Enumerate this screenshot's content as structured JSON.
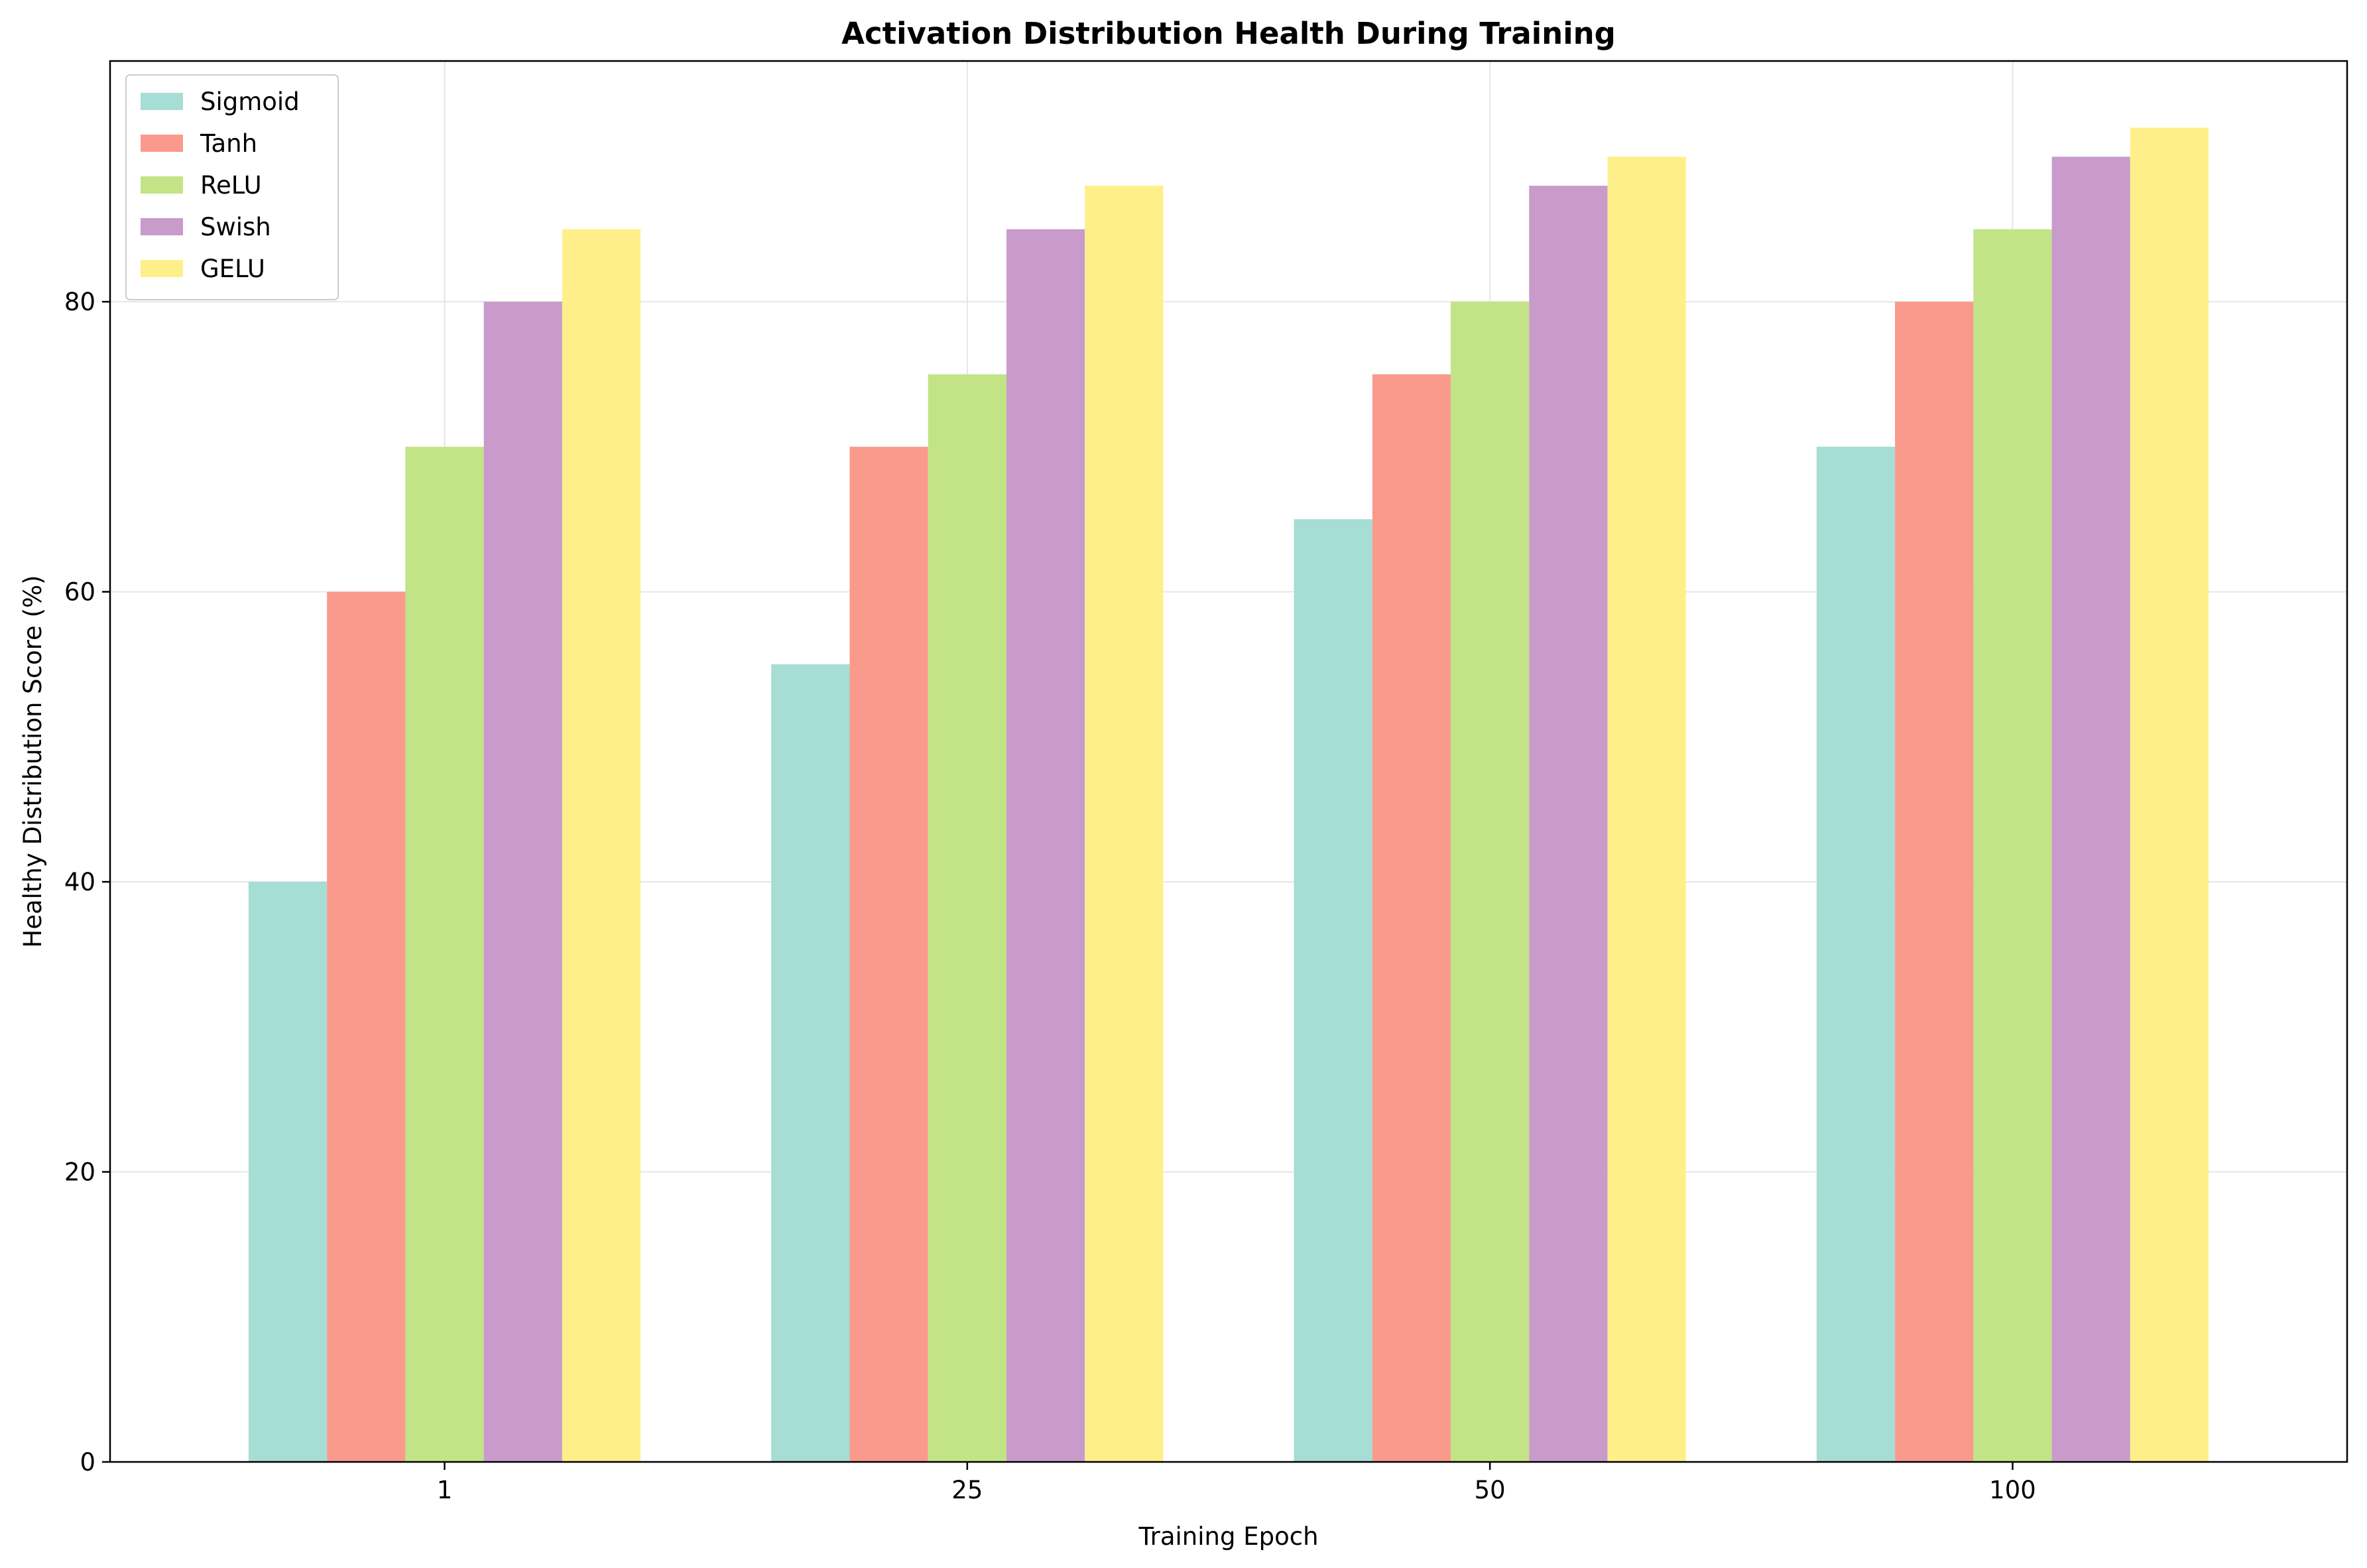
{
  "chart_data": {
    "type": "bar",
    "title": "Activation Distribution Health During Training",
    "xlabel": "Training Epoch",
    "ylabel": "Healthy Distribution Score (%)",
    "categories": [
      "1",
      "25",
      "50",
      "100"
    ],
    "ylim": [
      0,
      96.6
    ],
    "yticks": [
      0,
      20,
      40,
      60,
      80
    ],
    "grid": true,
    "legend_position": "top-left",
    "series": [
      {
        "name": "Sigmoid",
        "color": "#a6ddd5",
        "values": [
          40,
          55,
          65,
          70
        ]
      },
      {
        "name": "Tanh",
        "color": "#fa9a8d",
        "values": [
          60,
          70,
          75,
          80
        ]
      },
      {
        "name": "ReLU",
        "color": "#c2e486",
        "values": [
          70,
          75,
          80,
          85
        ]
      },
      {
        "name": "Swish",
        "color": "#c89bcb",
        "values": [
          80,
          85,
          88,
          90
        ]
      },
      {
        "name": "GELU",
        "color": "#ffef8a",
        "values": [
          85,
          88,
          90,
          92
        ]
      }
    ]
  }
}
